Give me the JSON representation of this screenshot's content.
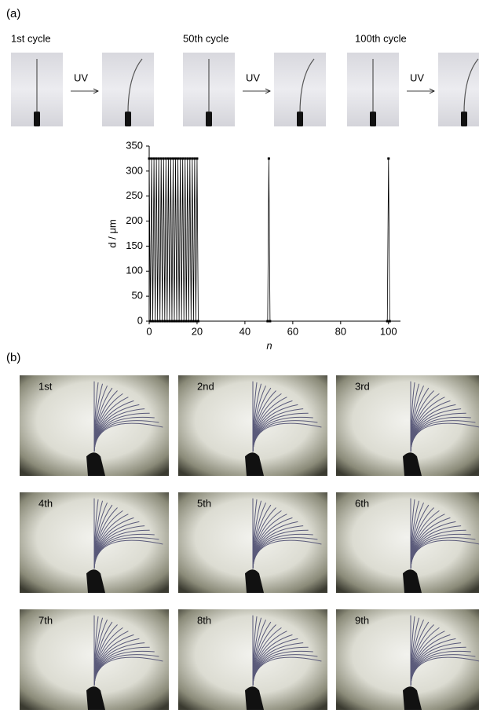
{
  "panel_a": {
    "label": "(a)",
    "cycles": [
      "1st cycle",
      "50th cycle",
      "100th cycle"
    ],
    "arrow_label": "UV"
  },
  "chart_data": {
    "type": "line",
    "y_label": "d / μm",
    "x_label": "n",
    "x": [
      0,
      0.5,
      1,
      1.5,
      2,
      2.5,
      3,
      3.5,
      4,
      4.5,
      5,
      5.5,
      6,
      6.5,
      7,
      7.5,
      8,
      8.5,
      9,
      9.5,
      10,
      10.5,
      11,
      11.5,
      12,
      12.5,
      13,
      13.5,
      14,
      14.5,
      15,
      15.5,
      16,
      16.5,
      17,
      17.5,
      18,
      18.5,
      19,
      19.5,
      20,
      20.5,
      49.5,
      50,
      50.5,
      99.5,
      100,
      100.5
    ],
    "values": [
      325,
      0,
      325,
      0,
      325,
      0,
      325,
      0,
      325,
      0,
      325,
      0,
      325,
      0,
      325,
      0,
      325,
      0,
      325,
      0,
      325,
      0,
      325,
      0,
      325,
      0,
      325,
      0,
      325,
      0,
      325,
      0,
      325,
      0,
      325,
      0,
      325,
      0,
      325,
      0,
      325,
      0,
      0,
      325,
      0,
      0,
      325,
      0
    ],
    "color": "#000000",
    "xlim": [
      0,
      105
    ],
    "xticks": [
      0,
      20,
      40,
      60,
      80,
      100
    ],
    "ylim": [
      0,
      350
    ],
    "yticks": [
      0,
      50,
      100,
      150,
      200,
      250,
      300,
      350
    ]
  },
  "panel_b": {
    "label": "(b)",
    "frames": [
      "1st",
      "2nd",
      "3rd",
      "4th",
      "5th",
      "6th",
      "7th",
      "8th",
      "9th"
    ]
  }
}
